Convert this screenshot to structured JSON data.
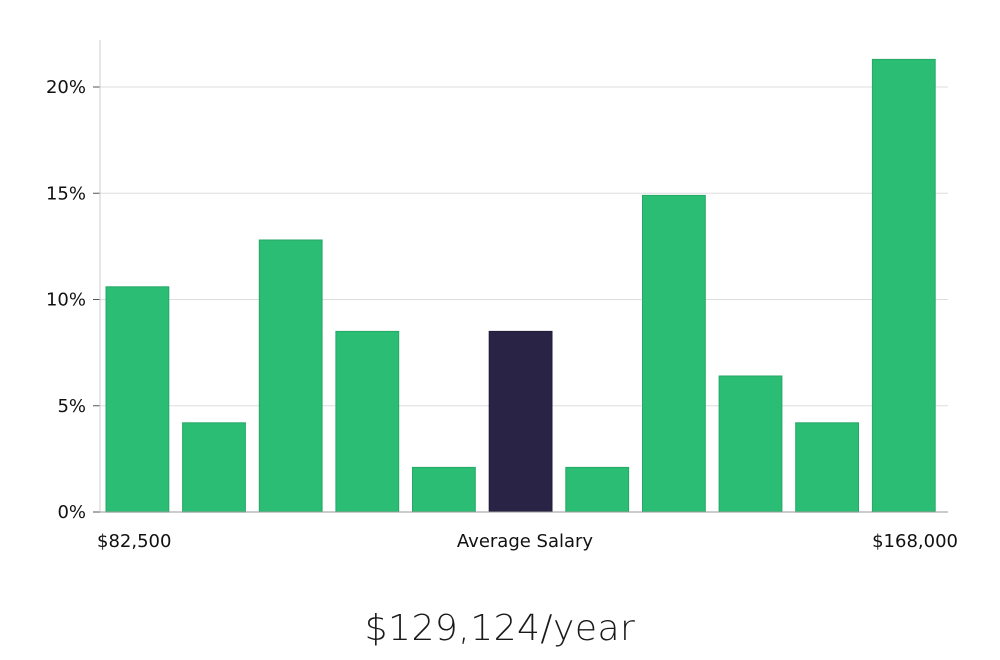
{
  "chart_data": {
    "type": "bar",
    "categories": [
      "1",
      "2",
      "3",
      "4",
      "5",
      "6",
      "7",
      "8",
      "9",
      "10",
      "11"
    ],
    "values": [
      10.6,
      4.2,
      12.8,
      8.5,
      2.1,
      8.5,
      2.1,
      14.9,
      6.4,
      4.2,
      21.3
    ],
    "highlight_index": 5,
    "y_unit": "%",
    "ylim": [
      0,
      22
    ],
    "y_ticks": [
      "0%",
      "5%",
      "10%",
      "15%",
      "20%"
    ],
    "y_tick_values": [
      0,
      5,
      10,
      15,
      20
    ],
    "x_labels": {
      "min": "$82,500",
      "center": "Average Salary",
      "max": "$168,000"
    },
    "grid": true,
    "colors": {
      "bar": "#2bbd74",
      "bar_highlight": "#292446",
      "grid": "#dddddd",
      "axis": "#cccccc"
    }
  },
  "summary": {
    "average_salary": "$129,124/year"
  }
}
